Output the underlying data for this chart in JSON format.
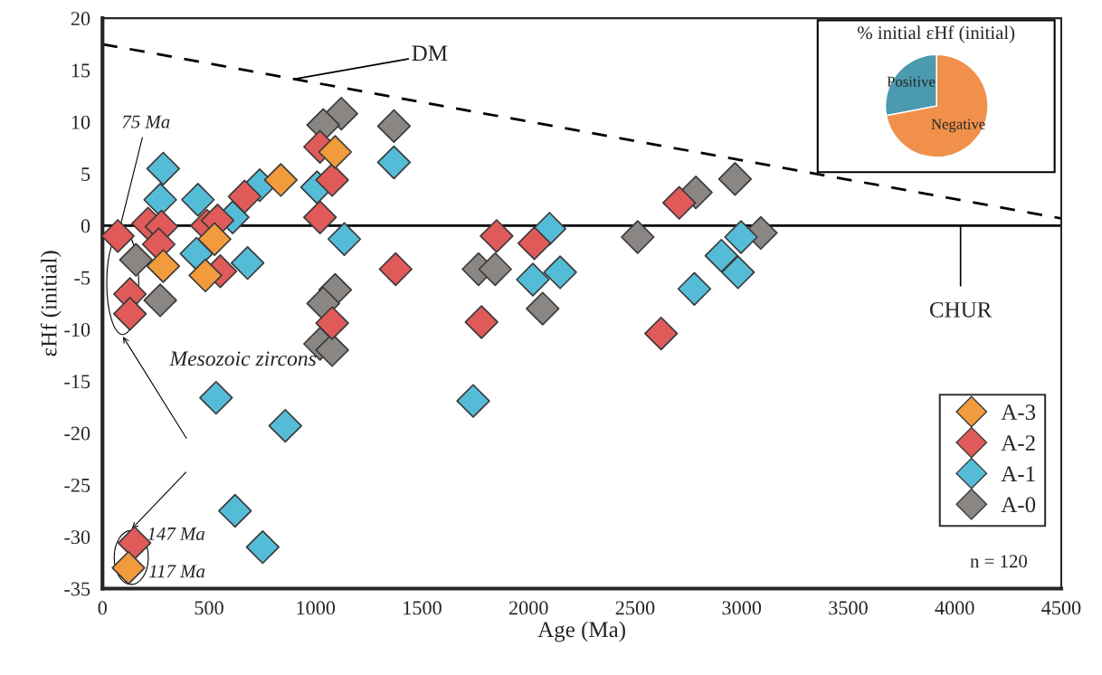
{
  "chart_data": [
    {
      "type": "scatter",
      "xlabel": "Age (Ma)",
      "ylabel": "εHf (initial)",
      "xlim": [
        0,
        4500
      ],
      "ylim": [
        -35,
        20
      ],
      "xticks": [
        0,
        500,
        1000,
        1500,
        2000,
        2500,
        3000,
        3500,
        4000,
        4500
      ],
      "yticks": [
        -35,
        -30,
        -25,
        -20,
        -15,
        -10,
        -5,
        0,
        5,
        10,
        15,
        20
      ],
      "marker": "diamond",
      "grid": false,
      "legend": "bottom right",
      "series": [
        {
          "name": "A-3",
          "color": "#f29b3c",
          "x": [
            837,
            1092,
            526,
            285,
            483,
            122
          ],
          "values": [
            4.4,
            7.1,
            -1.3,
            -3.9,
            -4.8,
            -33.0
          ]
        },
        {
          "name": "A-2",
          "color": "#e05a5a",
          "x": [
            72,
            214,
            277,
            264,
            129,
            129,
            490,
            540,
            667,
            1021,
            1078,
            1021,
            1376,
            1078,
            553,
            150,
            1779,
            1850,
            2027,
            2622,
            2707
          ],
          "values": [
            -1.0,
            0.2,
            -0.1,
            -1.8,
            -6.6,
            -8.5,
            0.0,
            0.5,
            2.8,
            7.6,
            4.4,
            0.8,
            -4.2,
            -9.4,
            -4.4,
            -30.6,
            -9.3,
            -1.0,
            -1.7,
            -10.4,
            2.2
          ]
        },
        {
          "name": "A-1",
          "color": "#55bcd8",
          "x": [
            285,
            271,
            448,
            738,
            1007,
            1368,
            1135,
            611,
            441,
            681,
            533,
            858,
            622,
            752,
            1740,
            2098,
            2020,
            2148,
            2997,
            2905,
            2983,
            2778
          ],
          "values": [
            5.5,
            2.5,
            2.5,
            3.9,
            3.7,
            6.1,
            -1.3,
            0.8,
            -2.7,
            -3.6,
            -16.6,
            -19.3,
            -27.5,
            -31.0,
            -16.9,
            -0.3,
            -5.2,
            -4.5,
            -1.1,
            -2.9,
            -4.5,
            -6.1
          ]
        },
        {
          "name": "A-0",
          "color": "#8a8684",
          "x": [
            1121,
            1036,
            1368,
            157,
            271,
            1092,
            1036,
            1021,
            1078,
            1765,
            1843,
            2066,
            2512,
            2785,
            2969,
            3090
          ],
          "values": [
            10.8,
            9.7,
            9.6,
            -3.3,
            -7.2,
            -6.2,
            -7.5,
            -11.4,
            -12.0,
            -4.2,
            -4.2,
            -8.0,
            -1.1,
            3.2,
            4.5,
            -0.7
          ]
        },
        {
          "name": "DM",
          "type": "line",
          "marker": "none",
          "color": "#000000",
          "line_style": "dashed",
          "x": [
            0,
            4500
          ],
          "values": [
            17.5,
            0.7
          ]
        }
      ],
      "ref_lines": [
        {
          "axis": "y",
          "value": 0,
          "label": "CHUR",
          "color": "#000000"
        }
      ],
      "annotations": [
        {
          "text": "75 Ma",
          "x": 72,
          "y": -1.0
        },
        "Mesozoic zircons",
        {
          "text": "147 Ma",
          "x": 150,
          "y": -30.6
        },
        {
          "text": "117 Ma",
          "x": 122,
          "y": -33.0
        },
        "n = 120"
      ]
    },
    {
      "type": "pie",
      "title": "% initial εHf (initial)",
      "categories": [
        "Positive",
        "Negative"
      ],
      "values": [
        28,
        72
      ],
      "colors": [
        "#4b9ab0",
        "#f0904a"
      ]
    }
  ]
}
